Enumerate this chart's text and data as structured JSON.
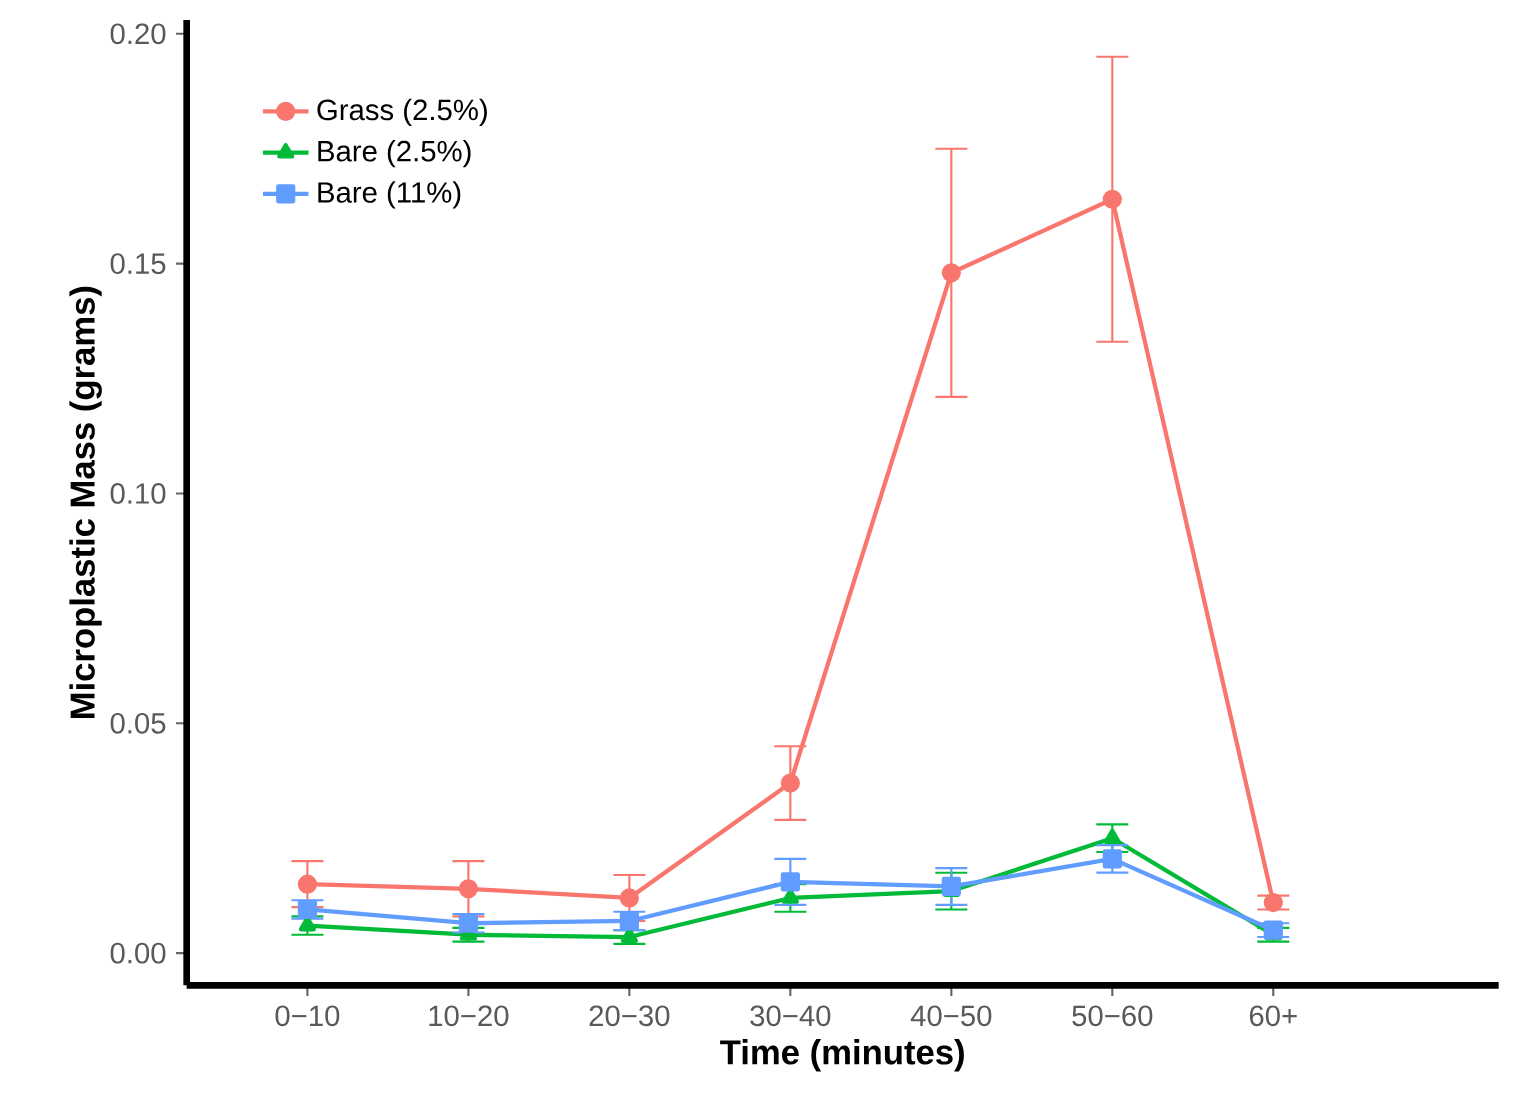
{
  "chart_data": {
    "type": "line",
    "xlabel": "Time (minutes)",
    "ylabel": "Microplastic Mass (grams)",
    "categories": [
      "0−10",
      "10−20",
      "20−30",
      "30−40",
      "40−50",
      "50−60",
      "60+"
    ],
    "series": [
      {
        "name": "Grass (2.5%)",
        "color": "#f8766d",
        "marker": "circle",
        "values": [
          0.015,
          0.014,
          0.012,
          0.037,
          0.148,
          0.164,
          0.011
        ],
        "errors": [
          0.005,
          0.006,
          0.005,
          0.008,
          0.027,
          0.031,
          0.0015
        ]
      },
      {
        "name": "Bare (2.5%)",
        "color": "#00ba38",
        "marker": "triangle",
        "values": [
          0.006,
          0.004,
          0.0035,
          0.012,
          0.0135,
          0.025,
          0.004
        ],
        "errors": [
          0.002,
          0.0015,
          0.0015,
          0.003,
          0.004,
          0.003,
          0.0015
        ]
      },
      {
        "name": "Bare (11%)",
        "color": "#619cff",
        "marker": "square",
        "values": [
          0.0095,
          0.0065,
          0.007,
          0.0155,
          0.0145,
          0.0205,
          0.005
        ],
        "errors": [
          0.002,
          0.002,
          0.002,
          0.005,
          0.004,
          0.003,
          0.0015
        ]
      }
    ],
    "ylim": [
      -0.007,
      0.203
    ],
    "yticks": [
      {
        "value": 0,
        "label": "0.00"
      },
      {
        "value": 0.05,
        "label": "0.05"
      },
      {
        "value": 0.1,
        "label": "0.10"
      },
      {
        "value": 0.15,
        "label": "0.15"
      },
      {
        "value": 0.2,
        "label": "0.20"
      }
    ],
    "grid": false,
    "legend": "top left",
    "line_style": "solid"
  }
}
